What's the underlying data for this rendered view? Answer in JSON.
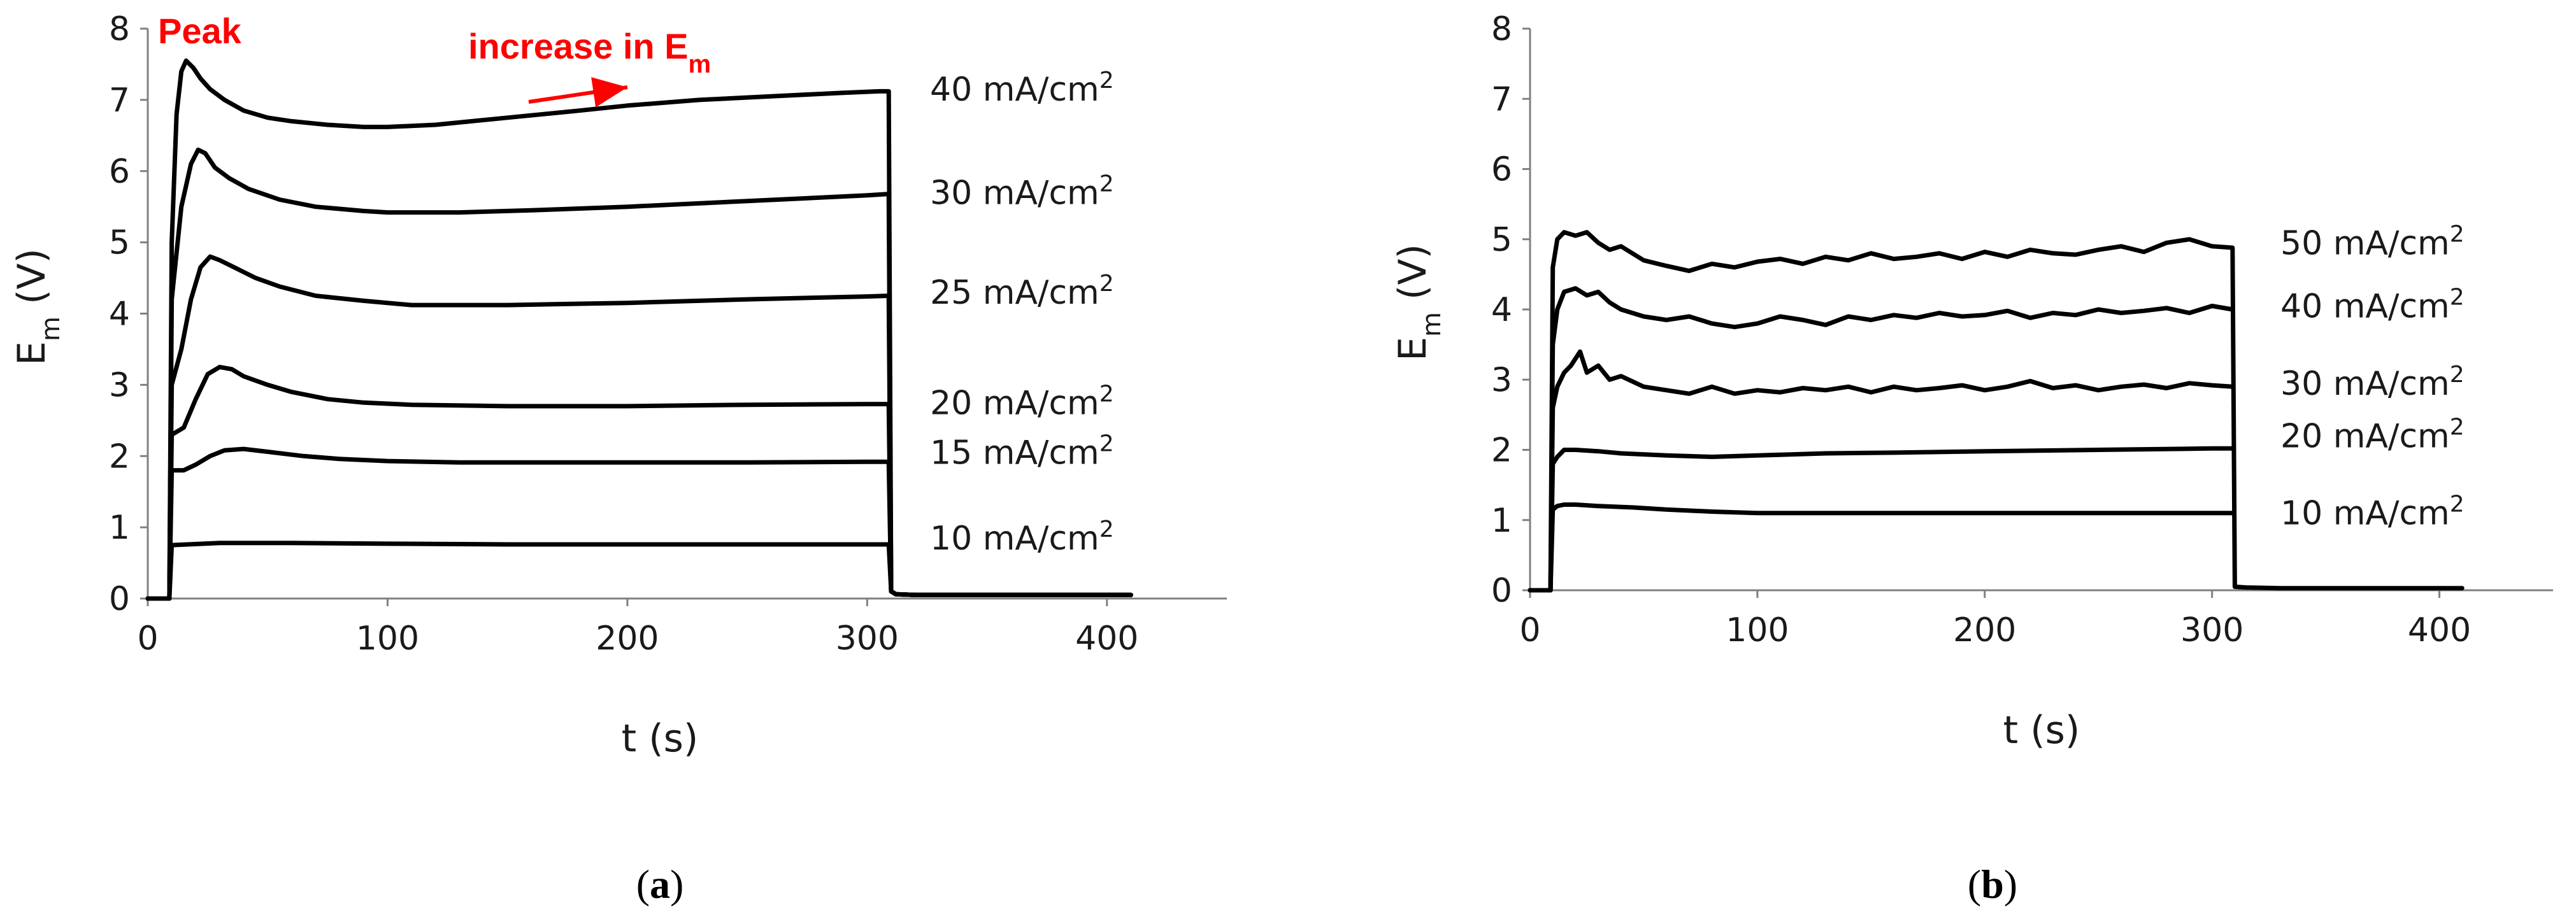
{
  "chart_data": [
    {
      "type": "line",
      "panel_label_prefix": "(",
      "panel_label_letter": "a",
      "panel_label_suffix": ")",
      "xlabel": "t (s)",
      "ylabel_main": "E",
      "ylabel_sub": "m",
      "ylabel_unit": " (V)",
      "xlim": [
        0,
        450
      ],
      "ylim": [
        0,
        8
      ],
      "xticks": [
        0,
        100,
        200,
        300,
        400
      ],
      "yticks": [
        0,
        1,
        2,
        3,
        4,
        5,
        6,
        7,
        8
      ],
      "grid": false,
      "annotations": {
        "peak": "Peak",
        "increase_main": "increase in E",
        "increase_sub": "m",
        "annotation_color": "#ff0000"
      },
      "series": [
        {
          "name": "40 mA/cm²",
          "label_text": "40 mA/cm",
          "label_sup": "2",
          "label_at": 7.15,
          "x": [
            0,
            9,
            10,
            12,
            14,
            16,
            19,
            22,
            26,
            32,
            40,
            50,
            60,
            75,
            90,
            100,
            120,
            150,
            180,
            200,
            230,
            260,
            290,
            305,
            309,
            310,
            312,
            320,
            350,
            380,
            410
          ],
          "y": [
            0,
            0,
            5.0,
            6.8,
            7.4,
            7.55,
            7.45,
            7.3,
            7.15,
            7.0,
            6.85,
            6.75,
            6.7,
            6.65,
            6.62,
            6.62,
            6.65,
            6.75,
            6.85,
            6.92,
            7.0,
            7.05,
            7.1,
            7.12,
            7.12,
            0.1,
            0.06,
            0.05,
            0.05,
            0.05,
            0.05
          ]
        },
        {
          "name": "30 mA/cm²",
          "label_text": "30 mA/cm",
          "label_sup": "2",
          "label_at": 5.7,
          "x": [
            0,
            9,
            10,
            14,
            18,
            21,
            24,
            28,
            34,
            42,
            55,
            70,
            90,
            100,
            130,
            160,
            200,
            250,
            300,
            309,
            310,
            312,
            320,
            350,
            380,
            410
          ],
          "y": [
            0,
            0,
            4.2,
            5.5,
            6.1,
            6.3,
            6.25,
            6.05,
            5.9,
            5.75,
            5.6,
            5.5,
            5.44,
            5.42,
            5.42,
            5.45,
            5.5,
            5.58,
            5.66,
            5.68,
            0.1,
            0.06,
            0.05,
            0.05,
            0.05,
            0.05
          ]
        },
        {
          "name": "25 mA/cm²",
          "label_text": "25 mA/cm",
          "label_sup": "2",
          "label_at": 4.3,
          "x": [
            0,
            9,
            10,
            14,
            18,
            22,
            26,
            30,
            36,
            45,
            55,
            70,
            90,
            110,
            150,
            200,
            250,
            300,
            309,
            310,
            312,
            320,
            350,
            380,
            410
          ],
          "y": [
            0,
            0,
            3.0,
            3.5,
            4.2,
            4.65,
            4.8,
            4.75,
            4.65,
            4.5,
            4.38,
            4.25,
            4.18,
            4.12,
            4.12,
            4.15,
            4.2,
            4.24,
            4.25,
            0.1,
            0.06,
            0.05,
            0.05,
            0.05,
            0.05
          ]
        },
        {
          "name": "20 mA/cm²",
          "label_text": "20 mA/cm",
          "label_sup": "2",
          "label_at": 2.75,
          "x": [
            0,
            9,
            10,
            15,
            20,
            25,
            30,
            35,
            40,
            50,
            60,
            75,
            90,
            110,
            150,
            200,
            250,
            300,
            309,
            310,
            312,
            320,
            350,
            380,
            410
          ],
          "y": [
            0,
            0,
            2.3,
            2.4,
            2.8,
            3.15,
            3.25,
            3.22,
            3.12,
            3.0,
            2.9,
            2.8,
            2.75,
            2.72,
            2.7,
            2.7,
            2.72,
            2.73,
            2.73,
            0.1,
            0.06,
            0.05,
            0.05,
            0.05,
            0.05
          ]
        },
        {
          "name": "15 mA/cm²",
          "label_text": "15 mA/cm",
          "label_sup": "2",
          "label_at": 2.05,
          "x": [
            0,
            9,
            10,
            15,
            20,
            26,
            32,
            40,
            50,
            65,
            80,
            100,
            130,
            200,
            250,
            300,
            309,
            310,
            312,
            320,
            350,
            380,
            410
          ],
          "y": [
            0,
            0,
            1.8,
            1.8,
            1.88,
            2.0,
            2.08,
            2.1,
            2.06,
            2.0,
            1.96,
            1.93,
            1.91,
            1.91,
            1.91,
            1.92,
            1.92,
            0.1,
            0.06,
            0.05,
            0.05,
            0.05,
            0.05
          ]
        },
        {
          "name": "10 mA/cm²",
          "label_text": "10 mA/cm",
          "label_sup": "2",
          "label_at": 0.85,
          "x": [
            0,
            9,
            10,
            30,
            60,
            100,
            150,
            200,
            250,
            300,
            309,
            310,
            312,
            320,
            350,
            380,
            410
          ],
          "y": [
            0,
            0,
            0.75,
            0.78,
            0.78,
            0.77,
            0.76,
            0.76,
            0.76,
            0.76,
            0.76,
            0.1,
            0.06,
            0.05,
            0.05,
            0.05,
            0.05
          ]
        }
      ]
    },
    {
      "type": "line",
      "panel_label_prefix": "(",
      "panel_label_letter": "b",
      "panel_label_suffix": ")",
      "xlabel": "t (s)",
      "ylabel_main": "E",
      "ylabel_sub": "m",
      "ylabel_unit": " (V)",
      "xlim": [
        0,
        450
      ],
      "ylim": [
        0,
        8
      ],
      "xticks": [
        0,
        100,
        200,
        300,
        400
      ],
      "yticks": [
        0,
        1,
        2,
        3,
        4,
        5,
        6,
        7,
        8
      ],
      "grid": false,
      "series": [
        {
          "name": "50 mA/cm²",
          "label_text": "50 mA/cm",
          "label_sup": "2",
          "label_at": 4.95,
          "x": [
            0,
            9,
            10,
            12,
            15,
            20,
            25,
            30,
            35,
            40,
            50,
            60,
            70,
            80,
            90,
            100,
            110,
            120,
            130,
            140,
            150,
            160,
            170,
            180,
            190,
            200,
            210,
            220,
            230,
            240,
            250,
            260,
            270,
            280,
            290,
            300,
            309,
            310,
            315,
            330,
            360,
            410
          ],
          "y": [
            0,
            0,
            4.6,
            5.0,
            5.1,
            5.05,
            5.1,
            4.95,
            4.85,
            4.9,
            4.7,
            4.62,
            4.55,
            4.65,
            4.6,
            4.68,
            4.72,
            4.65,
            4.75,
            4.7,
            4.8,
            4.72,
            4.75,
            4.8,
            4.72,
            4.82,
            4.75,
            4.85,
            4.8,
            4.78,
            4.85,
            4.9,
            4.82,
            4.95,
            5.0,
            4.9,
            4.88,
            0.05,
            0.04,
            0.03,
            0.03,
            0.03
          ]
        },
        {
          "name": "40 mA/cm²",
          "label_text": "40 mA/cm",
          "label_sup": "2",
          "label_at": 4.05,
          "x": [
            0,
            9,
            10,
            12,
            15,
            20,
            25,
            30,
            35,
            40,
            50,
            60,
            70,
            80,
            90,
            100,
            110,
            120,
            130,
            140,
            150,
            160,
            170,
            180,
            190,
            200,
            210,
            220,
            230,
            240,
            250,
            260,
            270,
            280,
            290,
            300,
            309
          ],
          "y": [
            0,
            0,
            3.5,
            4.0,
            4.25,
            4.3,
            4.2,
            4.25,
            4.1,
            4.0,
            3.9,
            3.85,
            3.9,
            3.8,
            3.75,
            3.8,
            3.9,
            3.85,
            3.78,
            3.9,
            3.85,
            3.92,
            3.88,
            3.95,
            3.9,
            3.92,
            3.98,
            3.88,
            3.95,
            3.92,
            4.0,
            3.95,
            3.98,
            4.02,
            3.95,
            4.05,
            4.0
          ]
        },
        {
          "name": "30 mA/cm²",
          "label_text": "30 mA/cm",
          "label_sup": "2",
          "label_at": 2.95,
          "x": [
            0,
            9,
            10,
            12,
            15,
            18,
            22,
            25,
            30,
            35,
            40,
            50,
            60,
            70,
            80,
            90,
            100,
            110,
            120,
            130,
            140,
            150,
            160,
            170,
            180,
            190,
            200,
            210,
            220,
            230,
            240,
            250,
            260,
            270,
            280,
            290,
            300,
            309
          ],
          "y": [
            0,
            0,
            2.6,
            2.9,
            3.1,
            3.2,
            3.4,
            3.1,
            3.2,
            3.0,
            3.05,
            2.9,
            2.85,
            2.8,
            2.9,
            2.8,
            2.85,
            2.82,
            2.88,
            2.85,
            2.9,
            2.82,
            2.9,
            2.85,
            2.88,
            2.92,
            2.85,
            2.9,
            2.98,
            2.88,
            2.92,
            2.85,
            2.9,
            2.93,
            2.88,
            2.95,
            2.92,
            2.9
          ]
        },
        {
          "name": "20 mA/cm²",
          "label_text": "20 mA/cm",
          "label_sup": "2",
          "label_at": 2.2,
          "x": [
            0,
            9,
            10,
            12,
            15,
            20,
            30,
            40,
            60,
            80,
            100,
            130,
            160,
            200,
            250,
            300,
            309
          ],
          "y": [
            0,
            0,
            1.8,
            1.9,
            2.0,
            2.0,
            1.98,
            1.95,
            1.92,
            1.9,
            1.92,
            1.95,
            1.96,
            1.98,
            2.0,
            2.02,
            2.02
          ]
        },
        {
          "name": "10 mA/cm²",
          "label_text": "10 mA/cm",
          "label_sup": "2",
          "label_at": 1.1,
          "x": [
            0,
            9,
            10,
            12,
            15,
            20,
            30,
            45,
            60,
            80,
            100,
            150,
            200,
            250,
            300,
            309
          ],
          "y": [
            0,
            0,
            1.15,
            1.2,
            1.22,
            1.22,
            1.2,
            1.18,
            1.15,
            1.12,
            1.1,
            1.1,
            1.1,
            1.1,
            1.1,
            1.1
          ]
        }
      ]
    }
  ]
}
